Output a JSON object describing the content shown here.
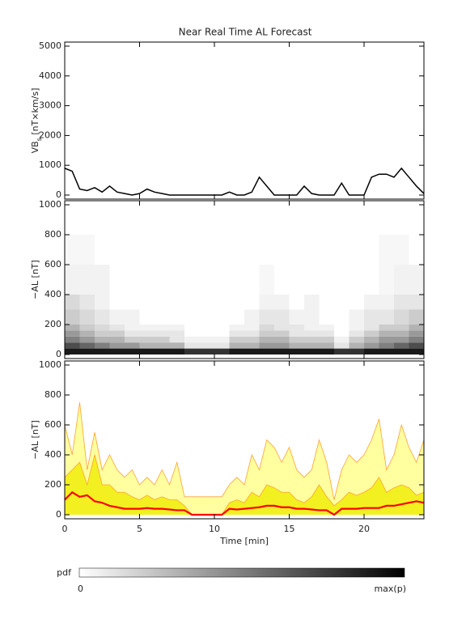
{
  "chart_data": [
    {
      "type": "line",
      "title": "Near Real Time AL Forecast",
      "ylabel": [
        "VB",
        "s",
        " [nT×km/s]"
      ],
      "xlim": [
        0,
        24
      ],
      "xticks": [
        0,
        5,
        10,
        15,
        20
      ],
      "ylim": [
        0,
        5000
      ],
      "yticks": [
        0,
        1000,
        2000,
        3000,
        4000,
        5000
      ],
      "color": "#000000",
      "x": [
        0,
        0.5,
        1,
        1.5,
        2,
        2.5,
        3,
        3.5,
        4,
        4.5,
        5,
        5.5,
        6,
        6.5,
        7,
        7.5,
        8,
        8.5,
        9,
        9.5,
        10,
        10.5,
        11,
        11.5,
        12,
        12.5,
        13,
        13.5,
        14,
        14.5,
        15,
        15.5,
        16,
        16.5,
        17,
        17.5,
        18,
        18.5,
        19,
        19.5,
        20,
        20.5,
        21,
        21.5,
        22,
        22.5,
        23,
        23.5,
        24
      ],
      "values": [
        900,
        800,
        200,
        150,
        250,
        100,
        300,
        100,
        50,
        0,
        50,
        200,
        100,
        50,
        0,
        0,
        0,
        0,
        0,
        0,
        0,
        0,
        100,
        0,
        0,
        100,
        600,
        300,
        0,
        0,
        0,
        0,
        300,
        50,
        0,
        0,
        0,
        400,
        0,
        0,
        0,
        600,
        700,
        700,
        600,
        900,
        600,
        300,
        50
      ]
    },
    {
      "type": "heatmap",
      "ylabel": [
        "−AL [nT]"
      ],
      "xlim": [
        0,
        24
      ],
      "xticks": [
        0,
        5,
        10,
        15,
        20
      ],
      "ylim": [
        0,
        1000
      ],
      "yticks": [
        0,
        200,
        400,
        600,
        800,
        1000
      ],
      "x_edges": [
        0,
        1,
        2,
        3,
        4,
        5,
        6,
        7,
        8,
        9,
        10,
        11,
        12,
        13,
        14,
        15,
        16,
        17,
        18,
        19,
        20,
        21,
        22,
        23,
        24
      ],
      "y_edges": [
        0,
        40,
        80,
        120,
        160,
        200,
        300,
        400,
        600,
        800
      ],
      "values": [
        [
          0.9,
          0.9,
          0.9,
          0.9,
          0.9,
          0.9,
          0.9,
          0.9,
          0.8,
          0.8,
          0.8,
          0.9,
          0.9,
          0.9,
          0.9,
          0.9,
          0.9,
          0.9,
          0.8,
          0.8,
          0.9,
          0.9,
          0.9,
          0.9
        ],
        [
          0.7,
          0.6,
          0.5,
          0.4,
          0.4,
          0.3,
          0.3,
          0.3,
          0.1,
          0.1,
          0.1,
          0.3,
          0.3,
          0.4,
          0.4,
          0.3,
          0.3,
          0.3,
          0.1,
          0.3,
          0.4,
          0.5,
          0.6,
          0.7
        ],
        [
          0.5,
          0.4,
          0.3,
          0.3,
          0.2,
          0.2,
          0.2,
          0.1,
          0.05,
          0.05,
          0.05,
          0.2,
          0.2,
          0.3,
          0.3,
          0.2,
          0.2,
          0.2,
          0.05,
          0.2,
          0.3,
          0.4,
          0.4,
          0.5
        ],
        [
          0.4,
          0.3,
          0.2,
          0.2,
          0.1,
          0.1,
          0.1,
          0.1,
          0,
          0,
          0,
          0.1,
          0.1,
          0.2,
          0.2,
          0.1,
          0.1,
          0.1,
          0,
          0.1,
          0.2,
          0.3,
          0.3,
          0.4
        ],
        [
          0.3,
          0.2,
          0.15,
          0.1,
          0.05,
          0.05,
          0.05,
          0.05,
          0,
          0,
          0,
          0.05,
          0.05,
          0.15,
          0.1,
          0.1,
          0.05,
          0.05,
          0,
          0.05,
          0.1,
          0.2,
          0.2,
          0.3
        ],
        [
          0.2,
          0.15,
          0.1,
          0.05,
          0.05,
          0,
          0,
          0,
          0,
          0,
          0,
          0,
          0.05,
          0.1,
          0.1,
          0.05,
          0.05,
          0,
          0,
          0.05,
          0.1,
          0.1,
          0.15,
          0.2
        ],
        [
          0.15,
          0.1,
          0.05,
          0,
          0,
          0,
          0,
          0,
          0,
          0,
          0,
          0,
          0,
          0.05,
          0.05,
          0,
          0.05,
          0,
          0,
          0,
          0.05,
          0.05,
          0.1,
          0.1
        ],
        [
          0.05,
          0.05,
          0.05,
          0,
          0,
          0,
          0,
          0,
          0,
          0,
          0,
          0,
          0,
          0.03,
          0,
          0,
          0,
          0,
          0,
          0,
          0,
          0.03,
          0.05,
          0.05
        ],
        [
          0.03,
          0.03,
          0,
          0,
          0,
          0,
          0,
          0,
          0,
          0,
          0,
          0,
          0,
          0,
          0,
          0,
          0,
          0,
          0,
          0,
          0,
          0.03,
          0.03,
          0
        ]
      ]
    },
    {
      "type": "area",
      "ylabel": [
        "−AL [nT]"
      ],
      "xlabel": "Time [min]",
      "xlim": [
        0,
        24
      ],
      "xticks": [
        0,
        5,
        10,
        15,
        20
      ],
      "ylim": [
        0,
        1000
      ],
      "yticks": [
        0,
        200,
        400,
        600,
        800,
        1000
      ],
      "x": [
        0,
        0.5,
        1,
        1.5,
        2,
        2.5,
        3,
        3.5,
        4,
        4.5,
        5,
        5.5,
        6,
        6.5,
        7,
        7.5,
        8,
        8.5,
        9,
        9.5,
        10,
        10.5,
        11,
        11.5,
        12,
        12.5,
        13,
        13.5,
        14,
        14.5,
        15,
        15.5,
        16,
        16.5,
        17,
        17.5,
        18,
        18.5,
        19,
        19.5,
        20,
        20.5,
        21,
        21.5,
        22,
        22.5,
        23,
        23.5,
        24
      ],
      "series": [
        {
          "kind": "area",
          "color": "#ffffa0",
          "edge_color": "#ffa030",
          "values": [
            600,
            400,
            750,
            300,
            550,
            300,
            400,
            300,
            250,
            300,
            200,
            250,
            200,
            300,
            200,
            350,
            120,
            120,
            120,
            120,
            120,
            120,
            200,
            250,
            200,
            400,
            300,
            500,
            450,
            350,
            450,
            300,
            250,
            300,
            500,
            350,
            100,
            300,
            400,
            350,
            400,
            500,
            640,
            300,
            400,
            600,
            450,
            350,
            500
          ]
        },
        {
          "kind": "area",
          "color": "#f2f020",
          "edge_color": "#ffa030",
          "values": [
            250,
            300,
            350,
            200,
            400,
            200,
            200,
            150,
            150,
            120,
            100,
            130,
            100,
            120,
            100,
            100,
            60,
            0,
            0,
            0,
            0,
            0,
            80,
            100,
            80,
            150,
            120,
            200,
            180,
            150,
            150,
            100,
            80,
            120,
            200,
            120,
            60,
            100,
            150,
            130,
            150,
            180,
            250,
            150,
            180,
            200,
            180,
            130,
            150
          ]
        },
        {
          "kind": "line",
          "color": "#ff0000",
          "values": [
            100,
            150,
            120,
            130,
            90,
            80,
            60,
            50,
            40,
            40,
            40,
            45,
            40,
            40,
            35,
            30,
            30,
            0,
            0,
            0,
            0,
            0,
            40,
            35,
            40,
            45,
            50,
            60,
            60,
            50,
            50,
            40,
            40,
            35,
            30,
            30,
            0,
            40,
            40,
            40,
            45,
            45,
            45,
            60,
            60,
            70,
            80,
            90,
            80
          ]
        }
      ]
    }
  ],
  "colorbar": {
    "label": "pdf",
    "min_label": "0",
    "max_label": "max(p)"
  }
}
